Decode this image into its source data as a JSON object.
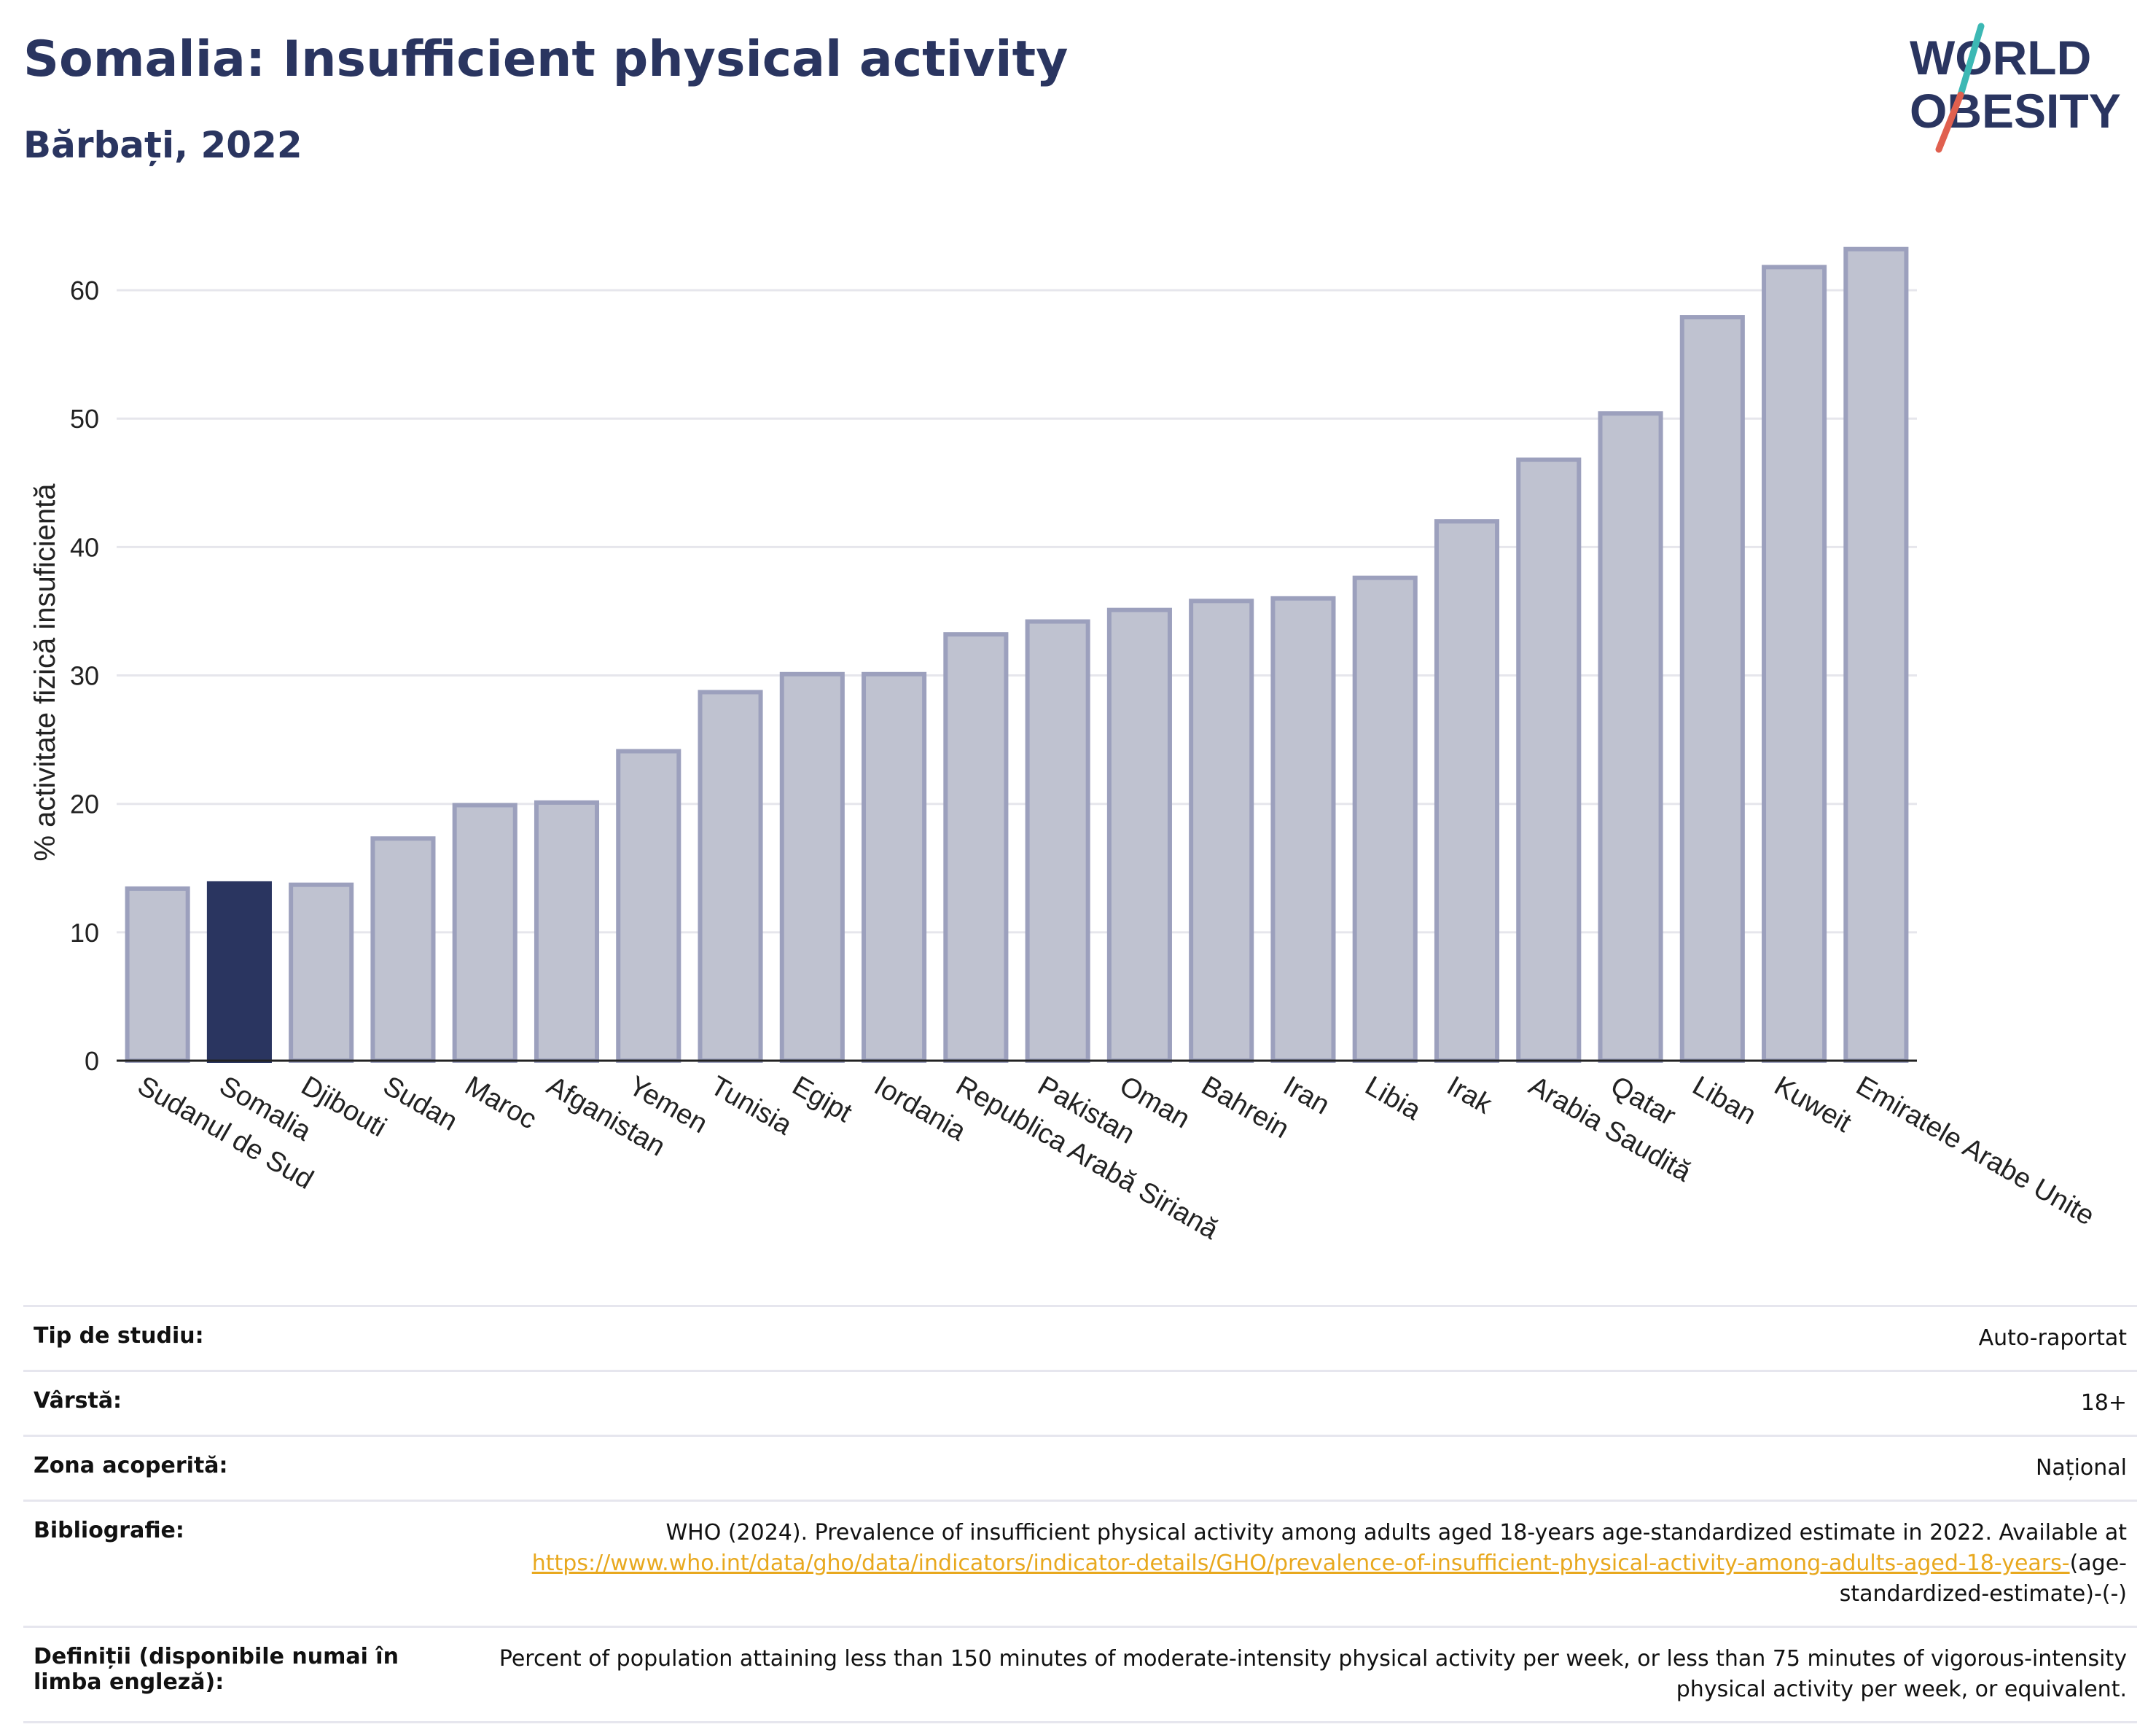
{
  "header": {
    "title": "Somalia: Insufficient physical activity",
    "subtitle": "Bărbați, 2022"
  },
  "logo": {
    "line1": "WORLD",
    "line2": "OBESITY",
    "color": "#2a3560",
    "slash_teal": "#3cb8b4",
    "slash_red": "#e0604f"
  },
  "chart_data": {
    "type": "bar",
    "categories": [
      "Sudanul de Sud",
      "Somalia",
      "Djibouti",
      "Sudan",
      "Maroc",
      "Afganistan",
      "Yemen",
      "Tunisia",
      "Egipt",
      "Iordania",
      "Republica Arabă Siriană",
      "Pakistan",
      "Oman",
      "Bahrein",
      "Iran",
      "Libia",
      "Irak",
      "Arabia Saudită",
      "Qatar",
      "Liban",
      "Kuweit",
      "Emiratele Arabe Unite"
    ],
    "values": [
      13.4,
      13.8,
      13.7,
      17.3,
      19.9,
      20.1,
      24.1,
      28.7,
      30.1,
      30.1,
      33.2,
      34.2,
      35.1,
      35.8,
      36.0,
      37.6,
      42.0,
      46.8,
      50.4,
      57.9,
      61.8,
      63.2
    ],
    "highlight": "Somalia",
    "ylabel": "% activitate fizică insuficientă",
    "ylim": [
      0,
      65
    ],
    "yticks": [
      0,
      10,
      20,
      30,
      40,
      50,
      60
    ],
    "grid": true,
    "colors": {
      "bar": "#bfc2d0",
      "bar_edge": "#9ca0bd",
      "highlight": "#2a3560",
      "grid": "#e6e6ec",
      "axis": "#222222"
    }
  },
  "info": {
    "study_type_label": "Tip de studiu:",
    "study_type_value": "Auto-raportat",
    "age_label": "Vârstă:",
    "age_value": "18+",
    "area_label": "Zona acoperită:",
    "area_value": "Național",
    "biblio_label": "Bibliografie:",
    "biblio_text": "WHO (2024). Prevalence of insufficient physical activity among adults aged 18-years age-standardized estimate in 2022. Available at",
    "biblio_link": "https://www.who.int/data/gho/data/indicators/indicator-details/GHO/prevalence-of-insufficient-physical-activity-among-adults-aged-18-years-",
    "biblio_suffix": "(age-standardized-estimate)-(-)",
    "definitions_label": "Definiții (disponibile numai în limba engleză):",
    "definitions_value": "Percent of population attaining less than 150 minutes of moderate-intensity physical activity per week, or less than 75 minutes of vigorous-intensity physical activity per week, or equivalent."
  }
}
